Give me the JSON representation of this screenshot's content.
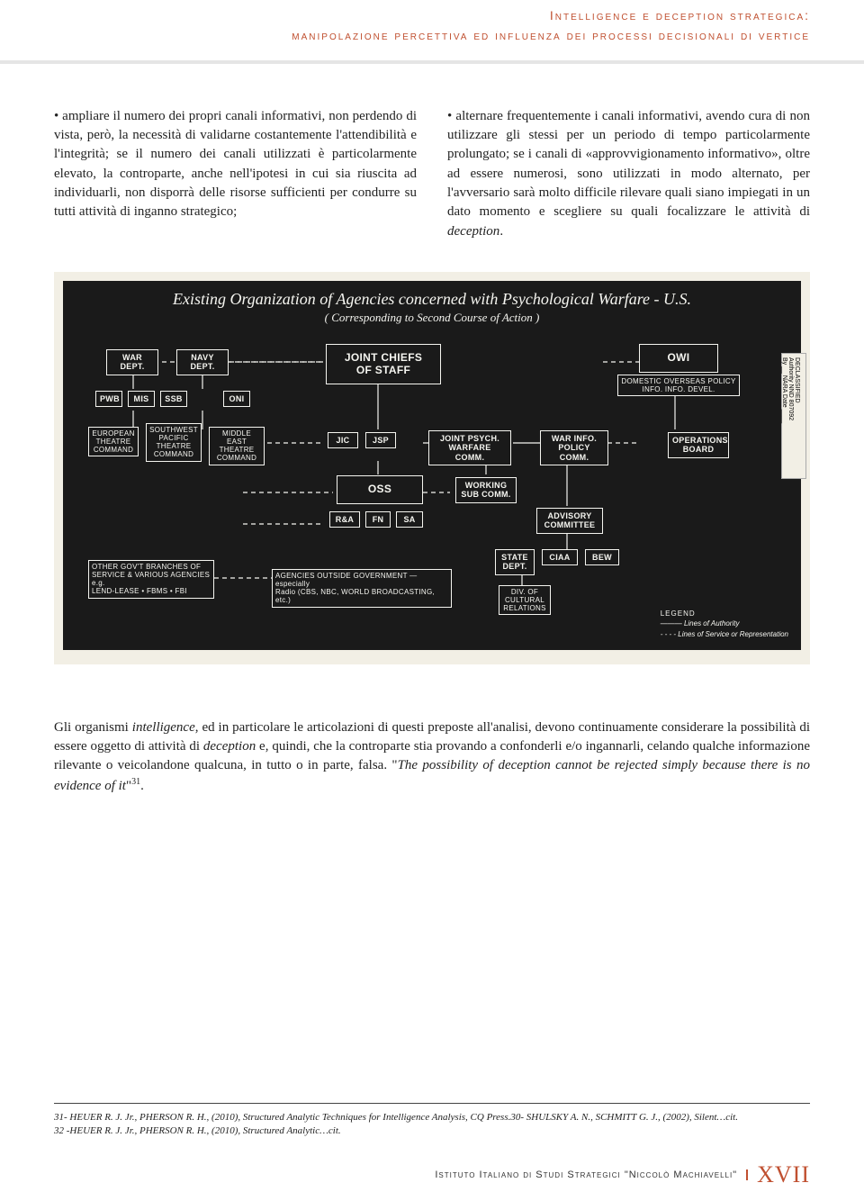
{
  "colors": {
    "accent": "#c05030",
    "text": "#222222",
    "diagram_bg": "#1a1a1a",
    "diagram_fg": "#f5f5f0",
    "paper": "#f2efe5"
  },
  "header": {
    "line1": "Intelligence e deception strategica:",
    "line2": "manipolazione percettiva ed influenza dei processi decisionali di vertice"
  },
  "body": {
    "col_left": "• ampliare il numero dei propri canali informativi, non perdendo di vista, però, la necessità di validarne costantemente l'attendibilità e l'integrità; se il numero dei canali utilizzati è particolarmente elevato, la controparte, anche nell'ipotesi in cui sia riuscita ad individuarli, non disporrà delle risorse sufficienti per condurre su tutti attività di inganno strategico;",
    "col_right_a": "• alternare frequentemente i canali informativi, avendo cura di non utilizzare gli stessi per un periodo di tempo particolarmente prolungato; se i canali di «approvvigionamento informativo», oltre ad essere numerosi, sono utilizzati in modo alternato, per l'avversario sarà molto difficile rilevare quali siano impiegati in un dato momento e scegliere su quali focalizzare le attività di ",
    "col_right_b": "deception",
    "col_right_c": "."
  },
  "figure": {
    "title": "Existing Organization of Agencies concerned with Psychological Warfare - U.S.",
    "subtitle": "( Corresponding to Second Course of Action )",
    "nodes": {
      "war_dept": "WAR\nDEPT.",
      "navy_dept": "NAVY\nDEPT.",
      "jcs": "JOINT CHIEFS\nOF STAFF",
      "owi": "OWI",
      "owi_sub": "DOMESTIC  OVERSEAS  POLICY\nINFO.        INFO.        DEVEL.",
      "pwb": "PWB",
      "mis": "MIS",
      "ssb": "SSB",
      "oni": "ONI",
      "etc": "EUROPEAN\nTHEATRE\nCOMMAND",
      "swp": "SOUTHWEST\nPACIFIC\nTHEATRE\nCOMMAND",
      "met": "MIDDLE EAST\nTHEATRE\nCOMMAND",
      "jic": "JIC",
      "jsp": "JSP",
      "jpwc": "JOINT PSYCH.\nWARFARE COMM.",
      "wipc": "WAR INFO.\nPOLICY COMM.",
      "opboard": "OPERATIONS\nBOARD",
      "oss": "OSS",
      "wsc": "WORKING\nSUB COMM.",
      "rea": "R&A",
      "fn": "FN",
      "sa": "SA",
      "adv": "ADVISORY\nCOMMITTEE",
      "state": "STATE\nDEPT.",
      "ciaa": "CIAA",
      "bew": "BEW",
      "divcult": "DIV. OF\nCULTURAL\nRELATIONS",
      "other": "OTHER GOV'T BRANCHES OF\nSERVICE & VARIOUS AGENCIES\ne.g.\nLEND-LEASE • FBMS • FBI",
      "agencies_out": "AGENCIES OUTSIDE GOVERNMENT — especially\nRadio (CBS, NBC, WORLD BROADCASTING, etc.)"
    },
    "legend": {
      "title": "LEGEND",
      "line1": "———  Lines of Authority",
      "line2": "- - - -  Lines of Service or Representation"
    },
    "tab": "DECLASSIFIED\nAuthority NND 807092\nBy __ NARA Date ____"
  },
  "below": {
    "a": "Gli organismi ",
    "b": "intelligence",
    "c": ", ed in particolare le articolazioni di questi preposte all'analisi, devono continuamente considerare la possibilità di essere oggetto di attività di ",
    "d": "deception",
    "e": " e, quindi, che la controparte stia provando a confonderli e/o ingannarli, celando qualche informazione rilevante o veicolandone qualcuna, in tutto o in parte, falsa. \"",
    "f": "The possibility of deception cannot be rejected simply because there is no evidence of it",
    "g": "\"",
    "sup": "31",
    "h": "."
  },
  "footnotes": {
    "n31": "31- HEUER R. J. Jr., PHERSON R. H., (2010), Structured Analytic Techniques for Intelligence Analysis, CQ Press.30- SHULSKY A. N., SCHMITT G. J., (2002), Silent…cit.",
    "n32": "32 -HEUER R. J. Jr., PHERSON R. H., (2010), Structured Analytic…cit."
  },
  "footer": {
    "institute": "Istituto Italiano di Studi Strategici \"Niccolò Machiavelli\"",
    "page": "XVII"
  }
}
